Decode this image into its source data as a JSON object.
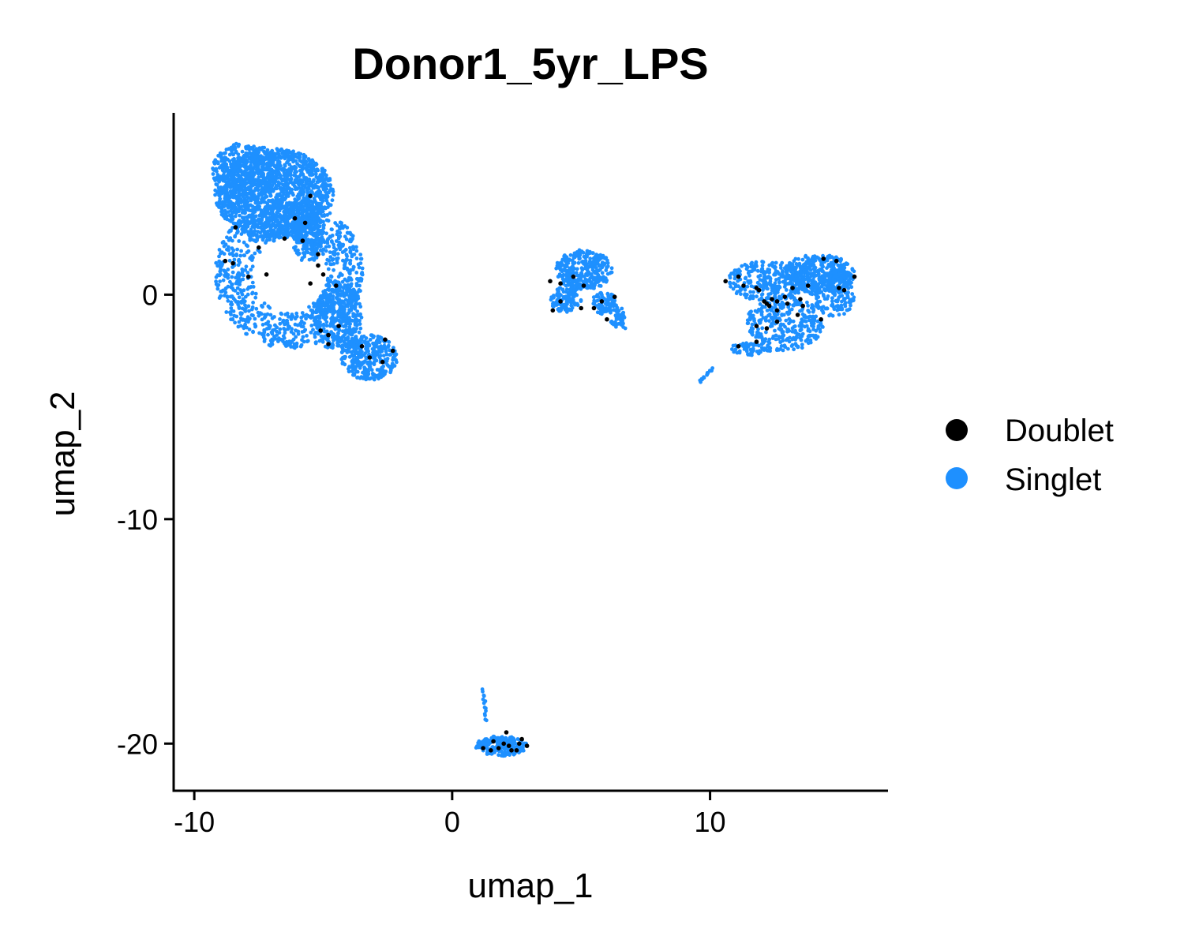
{
  "chart_data": {
    "type": "scatter",
    "title": "Donor1_5yr_LPS",
    "xlabel": "umap_1",
    "ylabel": "umap_2",
    "xlim": [
      -10.8,
      16.9
    ],
    "ylim": [
      -22.1,
      8.1
    ],
    "x_ticks": [
      -10,
      0,
      10
    ],
    "y_ticks": [
      0,
      -10,
      -20
    ],
    "x_tick_labels": [
      "-10",
      "0",
      "10"
    ],
    "y_tick_labels": [
      "0",
      "-10",
      "-20"
    ],
    "grid": false,
    "legend_position": "right",
    "series": [
      {
        "name": "Doublet",
        "color": "#000000",
        "points": [
          [
            -8.5,
            1.4
          ],
          [
            -7.5,
            2.1
          ],
          [
            -6.5,
            2.5
          ],
          [
            -5.8,
            2.4
          ],
          [
            -8.4,
            3.0
          ],
          [
            -5.2,
            1.8
          ],
          [
            -5.2,
            1.3
          ],
          [
            -5.0,
            0.9
          ],
          [
            -5.5,
            0.5
          ],
          [
            -7.9,
            0.8
          ],
          [
            -4.5,
            0.4
          ],
          [
            -4.4,
            -1.4
          ],
          [
            -4.8,
            -1.8
          ],
          [
            -4.8,
            -2.2
          ],
          [
            -5.1,
            -1.6
          ],
          [
            -3.5,
            -2.3
          ],
          [
            -2.6,
            -2.0
          ],
          [
            -2.7,
            -3.0
          ],
          [
            -3.2,
            -2.8
          ],
          [
            -2.3,
            -2.5
          ],
          [
            -5.5,
            4.4
          ],
          [
            -5.7,
            3.2
          ],
          [
            -6.1,
            3.4
          ],
          [
            -8.8,
            1.5
          ],
          [
            -7.2,
            0.9
          ],
          [
            3.8,
            0.6
          ],
          [
            4.2,
            0.5
          ],
          [
            4.2,
            -0.3
          ],
          [
            4.7,
            0.8
          ],
          [
            5.1,
            0.4
          ],
          [
            5.0,
            -0.6
          ],
          [
            5.8,
            -0.3
          ],
          [
            6.3,
            -0.1
          ],
          [
            6.0,
            -1.1
          ],
          [
            3.9,
            -0.7
          ],
          [
            5.5,
            -0.6
          ],
          [
            10.6,
            0.6
          ],
          [
            11.1,
            0.8
          ],
          [
            11.3,
            0.4
          ],
          [
            11.8,
            0.3
          ],
          [
            11.9,
            0.2
          ],
          [
            12.1,
            -0.3
          ],
          [
            12.3,
            -0.5
          ],
          [
            12.2,
            -0.4
          ],
          [
            12.6,
            -0.3
          ],
          [
            12.9,
            -0.1
          ],
          [
            13.0,
            -0.4
          ],
          [
            13.2,
            0.3
          ],
          [
            13.5,
            -0.2
          ],
          [
            13.4,
            -0.9
          ],
          [
            12.6,
            -1.2
          ],
          [
            12.2,
            -1.5
          ],
          [
            11.8,
            -1.4
          ],
          [
            11.8,
            -2.1
          ],
          [
            11.1,
            -2.3
          ],
          [
            13.8,
            0.4
          ],
          [
            14.4,
            1.6
          ],
          [
            14.9,
            1.5
          ],
          [
            15.0,
            0.3
          ],
          [
            15.2,
            0.2
          ],
          [
            15.6,
            0.8
          ],
          [
            14.3,
            -1.1
          ],
          [
            12.6,
            -0.7
          ],
          [
            12.4,
            -0.2
          ],
          [
            13.6,
            -0.5
          ],
          [
            1.2,
            -20.2
          ],
          [
            1.6,
            -19.9
          ],
          [
            1.8,
            -20.2
          ],
          [
            2.1,
            -19.5
          ],
          [
            2.2,
            -20.1
          ],
          [
            2.5,
            -20.3
          ],
          [
            2.6,
            -20.0
          ],
          [
            2.9,
            -20.1
          ],
          [
            1.5,
            -20.3
          ],
          [
            2.0,
            -20.0
          ],
          [
            2.7,
            -19.8
          ],
          [
            2.3,
            -20.3
          ]
        ]
      },
      {
        "name": "Singlet",
        "color": "#1E90FF",
        "clusters": [
          {
            "center": [
              -6.9,
              4.5
            ],
            "radius": [
              2.3,
              2.0
            ],
            "count": 1400,
            "inner": 0.0
          },
          {
            "center": [
              -8.0,
              5.5
            ],
            "radius": [
              1.3,
              1.3
            ],
            "count": 350,
            "inner": 0.0
          },
          {
            "center": [
              -6.3,
              0.9
            ],
            "radius": [
              2.9,
              3.3
            ],
            "count": 950,
            "inner": 0.5
          },
          {
            "center": [
              -4.4,
              -1.0
            ],
            "radius": [
              0.9,
              1.6
            ],
            "count": 350,
            "inner": 0.0
          },
          {
            "center": [
              -3.2,
              -2.8
            ],
            "radius": [
              1.1,
              1.0
            ],
            "count": 300,
            "inner": 0.0
          },
          {
            "center": [
              -5.6,
              2.6
            ],
            "radius": [
              0.6,
              1.2
            ],
            "count": 200,
            "inner": 0.0
          },
          {
            "center": [
              5.1,
              1.1
            ],
            "radius": [
              1.1,
              0.9
            ],
            "count": 320,
            "inner": 0.0
          },
          {
            "center": [
              4.4,
              -0.2
            ],
            "radius": [
              0.6,
              0.6
            ],
            "count": 110,
            "inner": 0.0
          },
          {
            "center": [
              5.9,
              -0.4
            ],
            "radius": [
              0.5,
              0.5
            ],
            "count": 90,
            "inner": 0.0
          },
          {
            "center": [
              6.4,
              -1.0
            ],
            "radius": [
              0.3,
              0.5
            ],
            "count": 40,
            "inner": 0.0
          },
          {
            "center": [
              14.2,
              0.9
            ],
            "radius": [
              1.4,
              0.9
            ],
            "count": 420,
            "inner": 0.0
          },
          {
            "center": [
              12.2,
              0.6
            ],
            "radius": [
              1.5,
              0.9
            ],
            "count": 280,
            "inner": 0.0
          },
          {
            "center": [
              12.9,
              -1.3
            ],
            "radius": [
              1.5,
              1.2
            ],
            "count": 300,
            "inner": 0.0
          },
          {
            "center": [
              14.8,
              0.0
            ],
            "radius": [
              0.8,
              1.0
            ],
            "count": 150,
            "inner": 0.0
          },
          {
            "center": [
              11.6,
              -2.4
            ],
            "radius": [
              0.8,
              0.3
            ],
            "count": 60,
            "inner": 0.0
          },
          {
            "center": [
              1.9,
              -20.1
            ],
            "radius": [
              1.0,
              0.45
            ],
            "count": 230,
            "inner": 0.0
          }
        ],
        "strands": [
          {
            "from": [
              9.6,
              -3.9
            ],
            "to": [
              10.1,
              -3.3
            ],
            "count": 14
          },
          {
            "from": [
              1.2,
              -17.6
            ],
            "to": [
              1.3,
              -19.0
            ],
            "count": 14
          },
          {
            "from": [
              6.4,
              -0.8
            ],
            "to": [
              6.7,
              -1.5
            ],
            "count": 10
          }
        ]
      }
    ],
    "legend": [
      {
        "label": "Doublet",
        "color": "#000000"
      },
      {
        "label": "Singlet",
        "color": "#1E90FF"
      }
    ]
  }
}
